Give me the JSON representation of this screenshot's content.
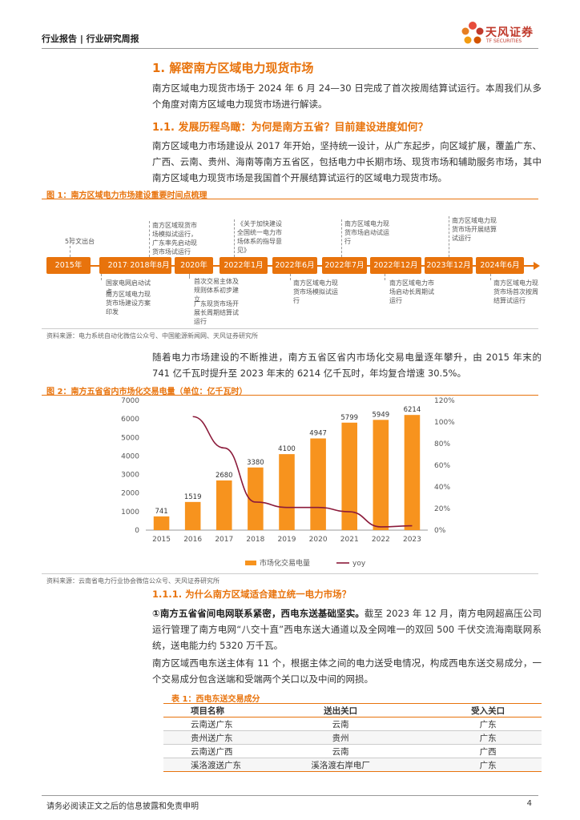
{
  "header": {
    "category": "行业报告 | 行业研究周报"
  },
  "logo": {
    "cn": "天风证券",
    "en": "TF SECURITIES"
  },
  "section": {
    "title": "1. 解密南方区域电力现货市场",
    "intro": "南方区域电力现货市场于 2024 年 6 月 24—30 日完成了首次按周结算试运行。本周我们从多个角度对南方区域电力现货市场进行解读。",
    "sub_title": "1.1. 发展历程鸟瞰：为何是南方五省？目前建设进度如何？",
    "sub_para": "南方区域电力市场建设从 2017 年开始，坚持统一设计，从广东起步，向区域扩展，覆盖广东、广西、云南、贵州、海南等南方五省区，包括电力中长期市场、现货市场和辅助服务市场，其中南方区域电力现货市场是我国首个开展结算试运行的区域电力现货市场。",
    "growth_para": "随着电力市场建设的不断推进，南方五省区省内市场化交易电量逐年攀升，由 2015 年末的 741 亿千瓦时提升至 2023 年末的 6214 亿千瓦时，年均复合增速 30.5%。",
    "h3": "1.1.1. 为什么南方区域适合建立统一电力市场？",
    "point1_bold": "①南方五省省间电网联系紧密，西电东送基础坚实。",
    "point1_rest": "截至 2023 年 12 月，南方电网超高压公司运行管理了南方电网“八交十直”西电东送大通道以及全网唯一的双回 500 千伏交流海南联网系统，送电能力约 5320 万千瓦。",
    "para3": "南方区域西电东送主体有 11 个，根据主体之间的电力送受电情况，构成西电东送交易成分，一个交易成分包含送端和受端两个关口以及中间的网损。"
  },
  "fig1": {
    "title": "图 1：南方区域电力市场建设重要时间点梳理",
    "source": "资料来源：电力系统自动化微信公众号、中国能源新闻网、天风证券研究所",
    "years": [
      "2015年",
      "2017年",
      "2018年8月",
      "2020年",
      "2022年1月",
      "2022年6月",
      "2022年7月",
      "2022年12月",
      "2023年12月",
      "2024年6月"
    ],
    "events_top": [
      "5号文出台",
      "南方区域现货市场模拟试运行，广东率先启动现货市场试运行",
      "《关于加快建设全国统一电力市场体系的指导意见》",
      "南方区域电力现货市场启动试运行",
      "南方区域电力现货市场开展结算试运行"
    ],
    "events_bottom": [
      "国家电网启动试点",
      "南方区域电力现货市场建设方案印发",
      "首次交易主体及规则体系初步建立",
      "广东现货市场开展长周期结算试运行",
      "南方区域电力现货市场模拟试运行",
      "南方区域电力市场启动长周期试运行",
      "南方区域电力现货市场首次按周结算试运行"
    ]
  },
  "fig2": {
    "title": "图 2：南方五省省内市场化交易电量（单位：亿千瓦时）",
    "source": "资料来源：云南省电力行业协会微信公众号、天风证券研究所"
  },
  "chart_data": {
    "type": "bar",
    "categories": [
      "2015",
      "2016",
      "2017",
      "2018",
      "2019",
      "2020",
      "2021",
      "2022",
      "2023"
    ],
    "series": [
      {
        "name": "市场化交易电量",
        "type": "bar",
        "axis": "left",
        "values": [
          741,
          1519,
          2680,
          3380,
          4100,
          4947,
          5799,
          5949,
          6214
        ],
        "color": "#f7931e"
      },
      {
        "name": "yoy",
        "type": "line",
        "axis": "right",
        "values": [
          null,
          1.05,
          0.76,
          0.26,
          0.21,
          0.21,
          0.17,
          0.03,
          0.04
        ],
        "color": "#8b1a3a"
      }
    ],
    "ylim": [
      0,
      7000
    ],
    "yticks": [
      "0",
      "1000",
      "2000",
      "3000",
      "4000",
      "5000",
      "6000",
      "7000"
    ],
    "y2lim": [
      0,
      1.2
    ],
    "y2ticks": [
      "0%",
      "20%",
      "40%",
      "60%",
      "80%",
      "100%",
      "120%"
    ],
    "legend": "bottom",
    "grid": false
  },
  "table1": {
    "title": "表 1：西电东送交易成分",
    "headers": [
      "项目名称",
      "送出关口",
      "受入关口"
    ],
    "rows": [
      [
        "云南送广东",
        "云南",
        "广东"
      ],
      [
        "贵州送广东",
        "贵州",
        "广东"
      ],
      [
        "云南送广西",
        "云南",
        "广西"
      ],
      [
        "溪洛渡送广东",
        "溪洛渡右岸电厂",
        "广东"
      ]
    ]
  },
  "footer": {
    "disclaimer": "请务必阅读正文之后的信息披露和免责申明",
    "page": "4"
  }
}
